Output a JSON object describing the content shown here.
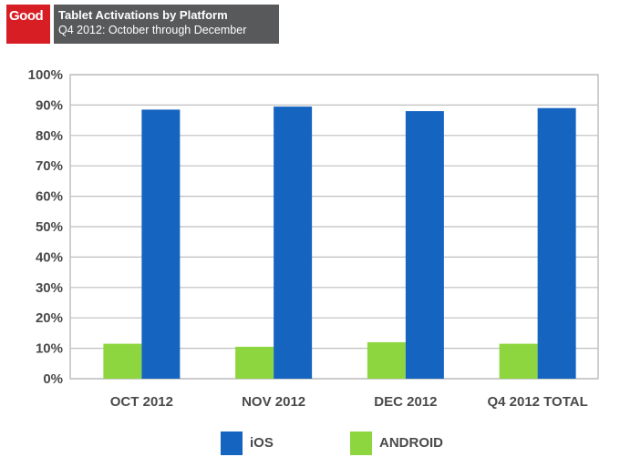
{
  "header": {
    "logo_text": "Good",
    "title": "Tablet Activations by Platform",
    "subtitle": "Q4 2012: October through December"
  },
  "chart_data": {
    "type": "bar",
    "categories": [
      "OCT 2012",
      "NOV 2012",
      "DEC 2012",
      "Q4 2012 TOTAL"
    ],
    "series": [
      {
        "name": "iOS",
        "values": [
          88.5,
          89.5,
          88,
          89
        ],
        "color": "#1565c0"
      },
      {
        "name": "ANDROID",
        "values": [
          11.5,
          10.5,
          12,
          11.5
        ],
        "color": "#8dd63f"
      }
    ],
    "yticks": [
      "0%",
      "10%",
      "20%",
      "30%",
      "40%",
      "50%",
      "60%",
      "70%",
      "80%",
      "90%",
      "100%"
    ],
    "ylim": [
      0,
      100
    ],
    "grid": true,
    "legend_placement": "bottom"
  }
}
